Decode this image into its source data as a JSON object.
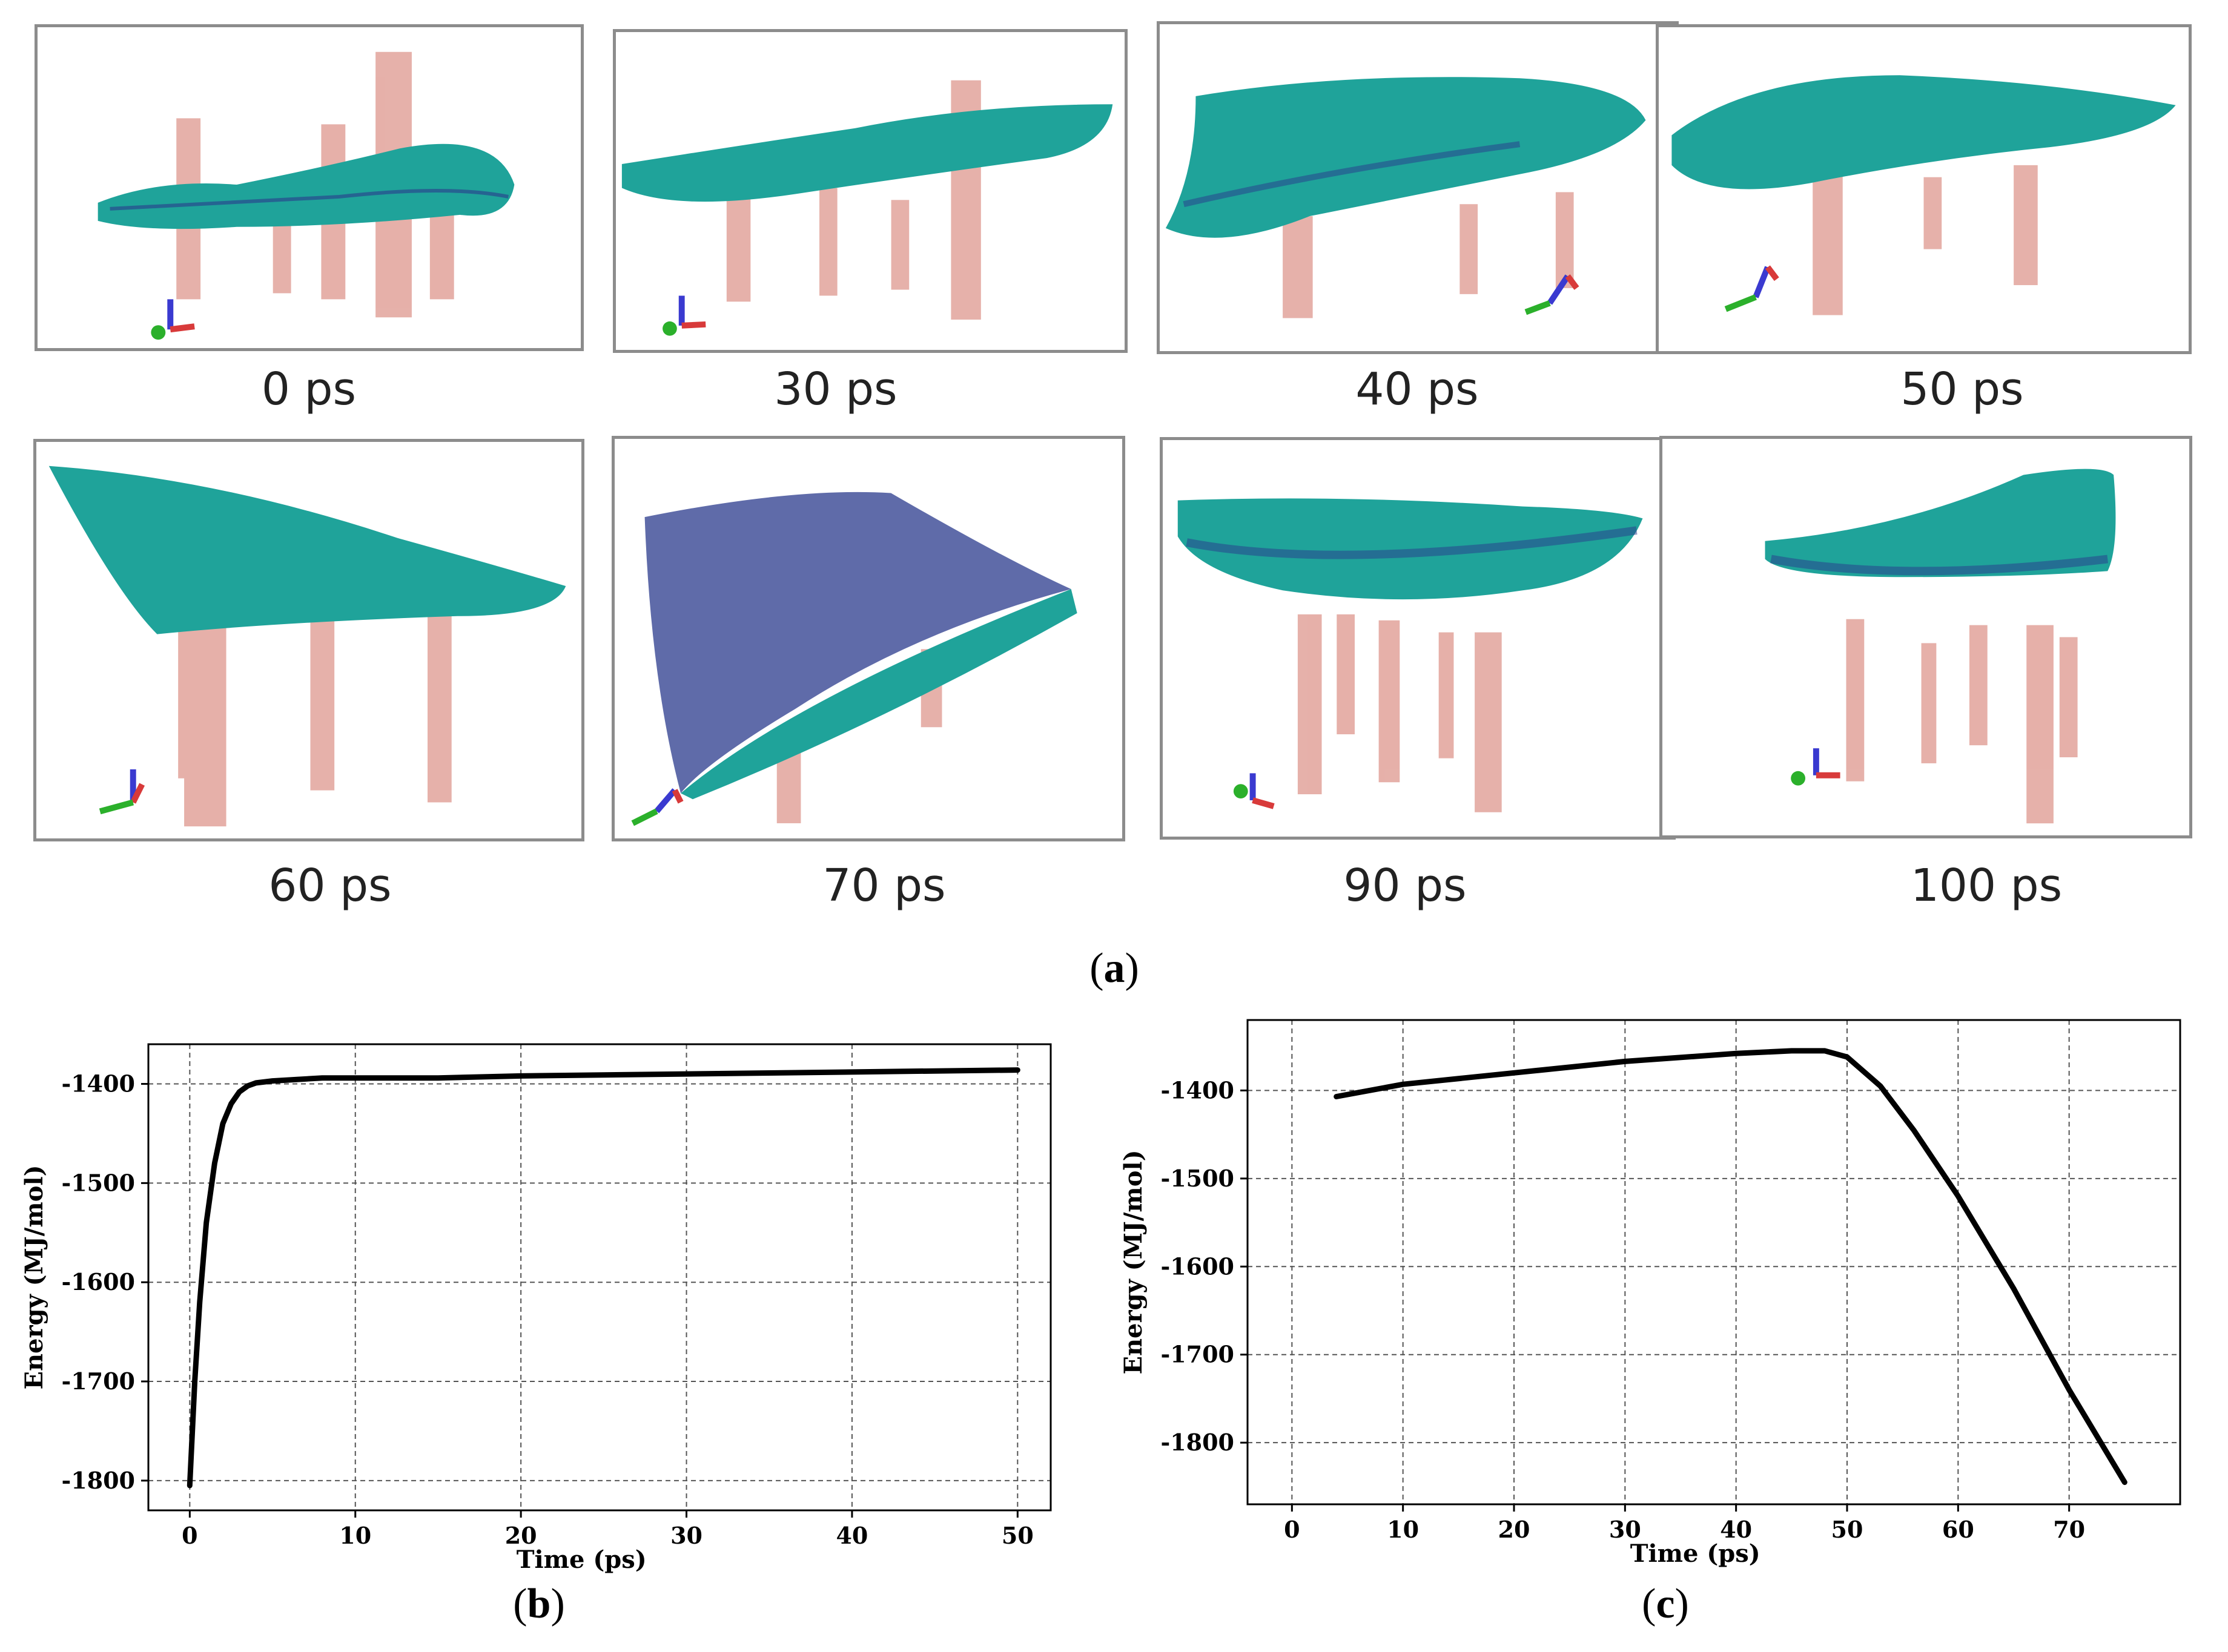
{
  "figure": {
    "panels": {
      "a": "a",
      "b": "b",
      "c": "c"
    },
    "snapshots": [
      {
        "label": "0 ps"
      },
      {
        "label": "30 ps"
      },
      {
        "label": "40 ps"
      },
      {
        "label": "50 ps"
      },
      {
        "label": "60 ps"
      },
      {
        "label": "70 ps"
      },
      {
        "label": "90 ps"
      },
      {
        "label": "100 ps"
      }
    ],
    "colors": {
      "water": "#1fa39a",
      "water_dark": "#2a3a8c",
      "cylinder": "#e2a39b",
      "axis_blue": "#3a3ad0",
      "axis_red": "#d83a3a",
      "axis_green": "#2bb02b",
      "line": "#000000"
    }
  },
  "chart_data": [
    {
      "id": "b",
      "type": "line",
      "title": "",
      "xlabel": "Time (ps)",
      "ylabel": "Energy (MJ/mol)",
      "xlim": [
        -2.5,
        52
      ],
      "ylim": [
        -1830,
        -1360
      ],
      "xticks": [
        0,
        10,
        20,
        30,
        40,
        50
      ],
      "yticks": [
        -1400,
        -1500,
        -1600,
        -1700,
        -1800
      ],
      "grid": true,
      "x": [
        0,
        0.3,
        0.6,
        1.0,
        1.5,
        2.0,
        2.5,
        3.0,
        3.5,
        4.0,
        5.0,
        6.0,
        8.0,
        10,
        15,
        20,
        25,
        30,
        35,
        40,
        45,
        50
      ],
      "y": [
        -1805,
        -1700,
        -1620,
        -1540,
        -1480,
        -1440,
        -1420,
        -1408,
        -1402,
        -1399,
        -1397,
        -1396,
        -1394,
        -1394,
        -1394,
        -1392,
        -1391,
        -1390,
        -1389,
        -1388,
        -1387,
        -1386
      ]
    },
    {
      "id": "c",
      "type": "line",
      "title": "",
      "xlabel": "Time (ps)",
      "ylabel": "Energy (MJ/mol)",
      "xlim": [
        -4,
        80
      ],
      "ylim": [
        -1870,
        -1320
      ],
      "xticks": [
        0,
        10,
        20,
        30,
        40,
        50,
        60,
        70
      ],
      "yticks": [
        -1400,
        -1500,
        -1600,
        -1700,
        -1800
      ],
      "grid": true,
      "x": [
        4,
        10,
        20,
        30,
        40,
        45,
        48,
        50,
        53,
        56,
        60,
        65,
        70,
        75
      ],
      "y": [
        -1407,
        -1393,
        -1380,
        -1367,
        -1358,
        -1355,
        -1355,
        -1362,
        -1395,
        -1445,
        -1520,
        -1625,
        -1740,
        -1845
      ]
    }
  ]
}
